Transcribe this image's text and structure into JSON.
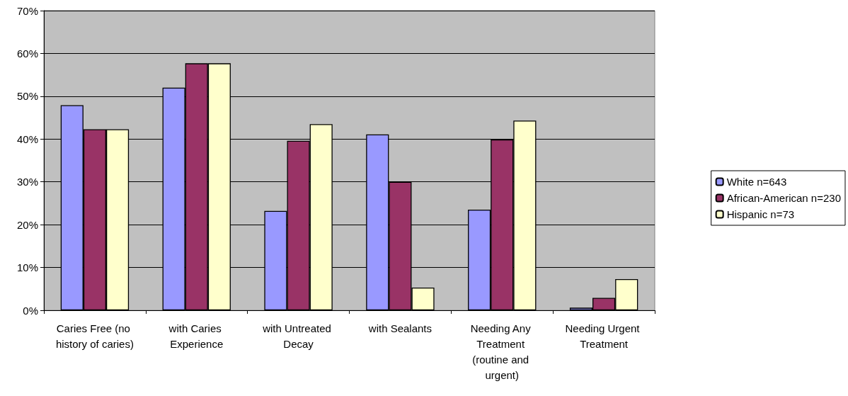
{
  "chart_data": {
    "type": "bar",
    "categories": [
      "Caries Free (no history of caries)",
      "with Caries Experience",
      "with Untreated Decay",
      "with Sealants",
      "Needing Any Treatment (routine and urgent)",
      "Needing Urgent Treatment"
    ],
    "series": [
      {
        "name": "White n=643",
        "color": "#9999ff",
        "values": [
          47.9,
          52.0,
          23.2,
          41.1,
          23.5,
          0.6
        ]
      },
      {
        "name": "African-American n=230",
        "color": "#993366",
        "values": [
          42.3,
          57.7,
          39.6,
          30.0,
          39.9,
          2.9
        ]
      },
      {
        "name": "Hispanic n=73",
        "color": "#ffffcc",
        "values": [
          42.3,
          57.7,
          43.5,
          5.3,
          44.3,
          7.3
        ]
      }
    ],
    "ylim": [
      0,
      70
    ],
    "yticks": [
      {
        "value": 0,
        "label": "0%"
      },
      {
        "value": 10,
        "label": "10%"
      },
      {
        "value": 20,
        "label": "20%"
      },
      {
        "value": 30,
        "label": "30%"
      },
      {
        "value": 40,
        "label": "40%"
      },
      {
        "value": 50,
        "label": "50%"
      },
      {
        "value": 60,
        "label": "60%"
      },
      {
        "value": 70,
        "label": "70%"
      }
    ],
    "grid": "y",
    "legend": "right"
  }
}
